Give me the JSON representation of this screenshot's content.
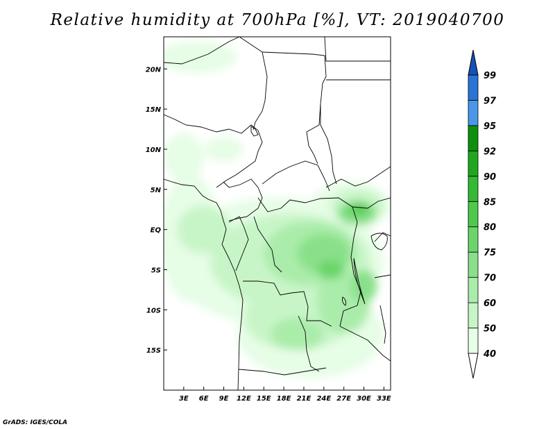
{
  "title": "Relative humidity at 700hPa [%], VT: 2019040700",
  "credit": "GrADS: IGES/COLA",
  "map": {
    "lon_range": [
      0,
      34
    ],
    "lat_range": [
      -20,
      24
    ],
    "lon_ticks": [
      {
        "value": 3,
        "label": "3E"
      },
      {
        "value": 6,
        "label": "6E"
      },
      {
        "value": 9,
        "label": "9E"
      },
      {
        "value": 12,
        "label": "12E"
      },
      {
        "value": 15,
        "label": "15E"
      },
      {
        "value": 18,
        "label": "18E"
      },
      {
        "value": 21,
        "label": "21E"
      },
      {
        "value": 24,
        "label": "24E"
      },
      {
        "value": 27,
        "label": "27E"
      },
      {
        "value": 30,
        "label": "30E"
      },
      {
        "value": 33,
        "label": "33E"
      }
    ],
    "lat_ticks": [
      {
        "value": 20,
        "label": "20N"
      },
      {
        "value": 15,
        "label": "15N"
      },
      {
        "value": 10,
        "label": "10N"
      },
      {
        "value": 5,
        "label": "5N"
      },
      {
        "value": 0,
        "label": "EQ"
      },
      {
        "value": -5,
        "label": "5S"
      },
      {
        "value": -10,
        "label": "10S"
      },
      {
        "value": -15,
        "label": "15S"
      }
    ]
  },
  "colorbar": {
    "levels": [
      "40",
      "50",
      "60",
      "70",
      "75",
      "80",
      "85",
      "90",
      "92",
      "95",
      "97",
      "99"
    ],
    "colors": [
      "#ffffff",
      "#e6fde6",
      "#c8f5c8",
      "#aaecaa",
      "#8ae08a",
      "#6bd56b",
      "#4ec94e",
      "#34b934",
      "#1fa81f",
      "#0e900e",
      "#4a97e8",
      "#2a74d6",
      "#1552b8"
    ]
  },
  "regions": [
    {
      "level": 1,
      "lon": 4,
      "lat": -1,
      "rx": 4.5,
      "ry": 8
    },
    {
      "level": 1,
      "lon": 17,
      "lat": -4,
      "rx": 16,
      "ry": 8
    },
    {
      "level": 1,
      "lon": 22,
      "lat": -13,
      "rx": 11,
      "ry": 5.5
    },
    {
      "level": 1,
      "lon": 28,
      "lat": 3,
      "rx": 6,
      "ry": 3
    },
    {
      "level": 1,
      "lon": 5,
      "lat": 21.5,
      "rx": 6,
      "ry": 2
    },
    {
      "level": 1,
      "lon": 3,
      "lat": 9,
      "rx": 3,
      "ry": 3
    },
    {
      "level": 1,
      "lon": 9,
      "lat": 10,
      "rx": 3,
      "ry": 1.5
    },
    {
      "level": 2,
      "lon": 19,
      "lat": -4,
      "rx": 12,
      "ry": 6
    },
    {
      "level": 2,
      "lon": 20,
      "lat": -11,
      "rx": 8,
      "ry": 4
    },
    {
      "level": 2,
      "lon": 6,
      "lat": 0,
      "rx": 4,
      "ry": 3
    },
    {
      "level": 2,
      "lon": 29,
      "lat": 3,
      "rx": 4,
      "ry": 2
    },
    {
      "level": 3,
      "lon": 22,
      "lat": -3,
      "rx": 7,
      "ry": 4
    },
    {
      "level": 3,
      "lon": 27,
      "lat": -9,
      "rx": 4,
      "ry": 4
    },
    {
      "level": 3,
      "lon": 20,
      "lat": -13,
      "rx": 4,
      "ry": 2
    },
    {
      "level": 4,
      "lon": 24,
      "lat": -3,
      "rx": 4,
      "ry": 2.5
    },
    {
      "level": 4,
      "lon": 29,
      "lat": 2,
      "rx": 3,
      "ry": 1.5
    },
    {
      "level": 4,
      "lon": 30,
      "lat": -7,
      "rx": 2,
      "ry": 2
    },
    {
      "level": 5,
      "lon": 29,
      "lat": 2.5,
      "rx": 2,
      "ry": 1
    },
    {
      "level": 5,
      "lon": 25,
      "lat": -5,
      "rx": 2,
      "ry": 1.2
    },
    {
      "level": 6,
      "lon": 29.5,
      "lat": 2.8,
      "rx": 1,
      "ry": 0.6
    }
  ]
}
